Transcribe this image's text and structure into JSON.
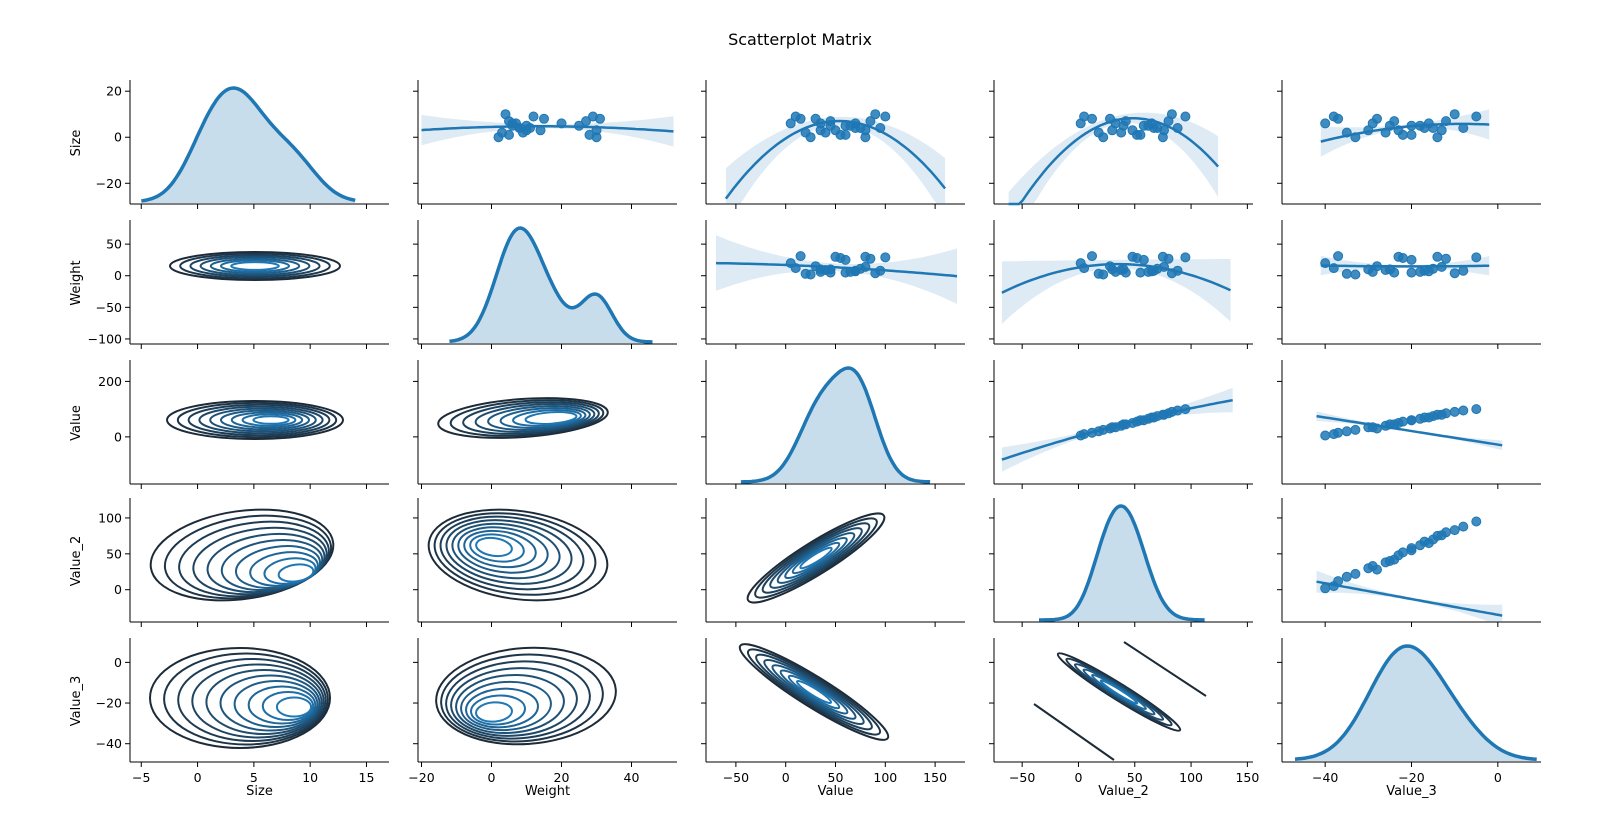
{
  "chart_data": {
    "type": "scatter-matrix",
    "title": "Scatterplot Matrix",
    "variables": [
      "Size",
      "Weight",
      "Value",
      "Value_2",
      "Value_3"
    ],
    "axes": {
      "Size": {
        "x_range": [
          -6,
          17
        ],
        "y_range": [
          -29,
          24
        ],
        "x_ticks": [
          -5,
          0,
          5,
          10,
          15
        ],
        "y_ticks": [
          20,
          0,
          -20
        ]
      },
      "Weight": {
        "x_range": [
          -21,
          53
        ],
        "y_range": [
          -108,
          85
        ],
        "x_ticks": [
          -20,
          0,
          20,
          40
        ],
        "y_ticks": [
          50,
          0,
          -50,
          -100
        ]
      },
      "Value": {
        "x_range": [
          -80,
          180
        ],
        "y_range": [
          -170,
          270
        ],
        "x_ticks": [
          -50,
          0,
          50,
          100,
          150
        ],
        "y_ticks": [
          200,
          0
        ]
      },
      "Value_2": {
        "x_range": [
          -75,
          155
        ],
        "y_range": [
          -45,
          125
        ],
        "x_ticks": [
          -50,
          0,
          50,
          100,
          150
        ],
        "y_ticks": [
          100,
          50,
          0
        ]
      },
      "Value_3": {
        "x_range": [
          -50,
          10
        ],
        "y_range": [
          -49,
          11
        ],
        "x_ticks": [
          -40,
          -20,
          0
        ],
        "y_ticks": [
          0,
          -20,
          -40
        ]
      }
    },
    "diagonal": "kde",
    "upper_triangle": "scatter with polynomial regression fit and confidence band",
    "lower_triangle": "kde contours",
    "points": {
      "Size": [
        2,
        3,
        5,
        7,
        0,
        4,
        9,
        1,
        6,
        8,
        10,
        3,
        5,
        2,
        7,
        0,
        4,
        6,
        9,
        1,
        8,
        5,
        3,
        6,
        4
      ],
      "Weight": [
        3,
        10,
        25,
        5,
        30,
        8,
        12,
        28,
        7,
        15,
        4,
        30,
        6,
        9,
        27,
        2,
        11,
        20,
        29,
        5,
        31,
        10,
        14,
        6,
        8
      ],
      "Value": [
        20,
        35,
        60,
        45,
        80,
        95,
        10,
        55,
        70,
        30,
        90,
        50,
        65,
        40,
        85,
        25,
        75,
        5,
        100,
        60,
        15,
        45,
        80,
        35,
        70
      ],
      "Value_2": [
        18,
        30,
        58,
        42,
        75,
        88,
        5,
        52,
        65,
        28,
        83,
        48,
        62,
        38,
        80,
        22,
        70,
        2,
        95,
        55,
        12,
        40,
        76,
        33,
        67
      ],
      "Value_3": [
        -35,
        -30,
        -20,
        -24,
        -14,
        -8,
        -38,
        -22,
        -16,
        -28,
        -10,
        -23,
        -18,
        -26,
        -12,
        -33,
        -15,
        -40,
        -5,
        -20,
        -37,
        -25,
        -13,
        -29,
        -17
      ]
    },
    "color": "#1f77b4",
    "contour_dark_color": "#1d2b38",
    "grid": false,
    "legend": "none"
  }
}
